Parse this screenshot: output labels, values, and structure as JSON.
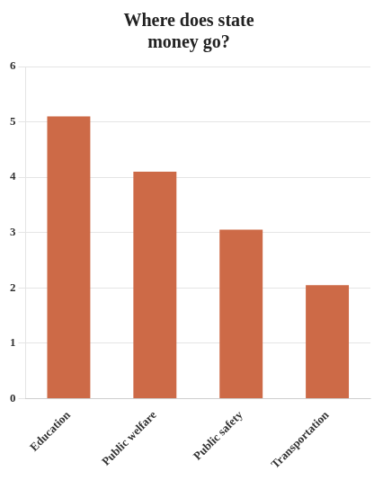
{
  "chart_data": {
    "type": "bar",
    "title": "Where does state\nmoney go?",
    "categories": [
      "Education",
      "Public welfare",
      "Public safety",
      "Transportation"
    ],
    "values": [
      5.1,
      4.1,
      3.05,
      2.05
    ],
    "color": "#cd6a47",
    "ylim": [
      0,
      6
    ],
    "yticks": [
      0,
      1,
      2,
      3,
      4,
      5,
      6
    ],
    "grid": true
  }
}
